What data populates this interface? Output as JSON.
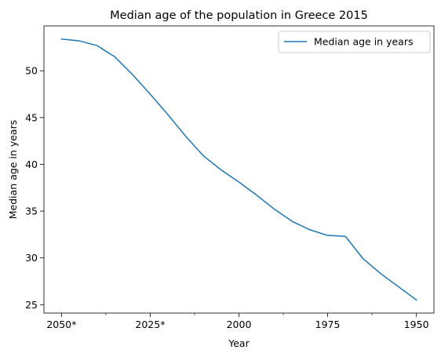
{
  "chart_data": {
    "type": "line",
    "title": "Median age of the population in Greece 2015",
    "xlabel": "Year",
    "ylabel": "Median age in years",
    "x": [
      "2050*",
      "2045*",
      "2040*",
      "2035*",
      "2030*",
      "2025*",
      "2020*",
      "2015*",
      "2010",
      "2005",
      "2000",
      "1995",
      "1990",
      "1985",
      "1980",
      "1975",
      "1970",
      "1965",
      "1960",
      "1955",
      "1950"
    ],
    "x_tick_labels": [
      "2050*",
      "2025*",
      "2000",
      "1975",
      "1950"
    ],
    "series": [
      {
        "name": "Median age in years",
        "values": [
          53.4,
          53.2,
          52.7,
          51.5,
          49.6,
          47.5,
          45.3,
          43.0,
          40.9,
          39.4,
          38.1,
          36.7,
          35.2,
          33.9,
          33.0,
          32.4,
          32.3,
          29.9,
          28.3,
          26.9,
          25.5
        ]
      }
    ],
    "ylim": [
      24.1,
      54.8
    ],
    "y_ticks": [
      25,
      30,
      35,
      40,
      45,
      50
    ],
    "grid": false,
    "legend_position": "top-right",
    "line_color": "#1f77b4"
  }
}
